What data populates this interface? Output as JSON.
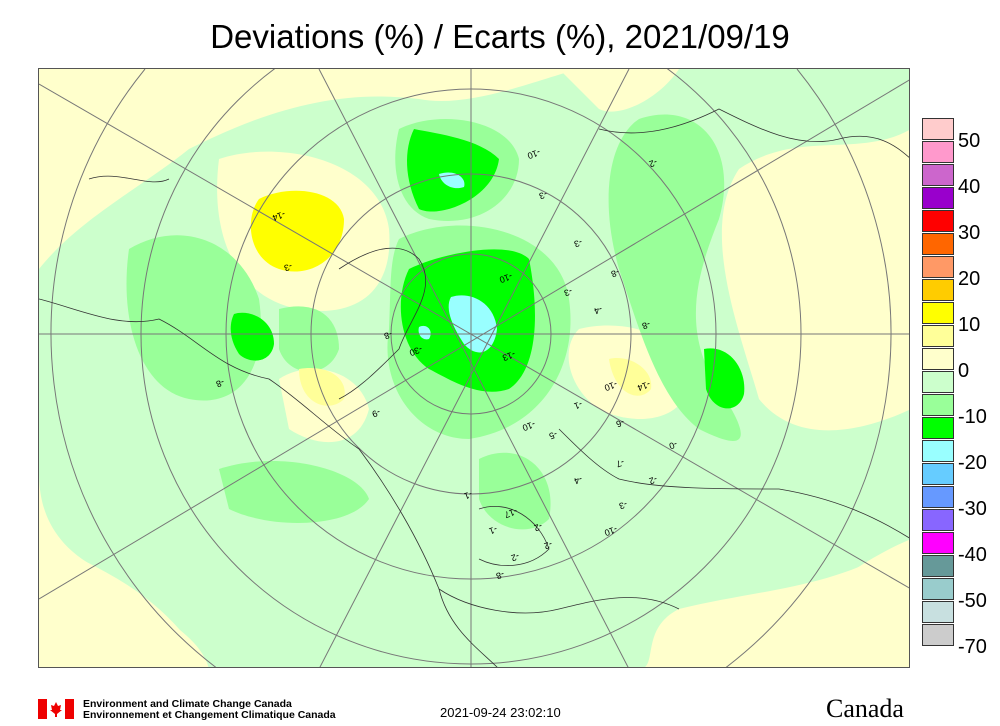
{
  "title": "Deviations (%) / Ecarts (%), 2021/09/19",
  "legend": {
    "colors": [
      "#ffcccc",
      "#ff99cc",
      "#cc66cc",
      "#9900cc",
      "#ff0000",
      "#ff6600",
      "#ff9966",
      "#ffcc00",
      "#ffff00",
      "#ffff99",
      "#ffffcc",
      "#ccffcc",
      "#99ff99",
      "#00ff00",
      "#99ffff",
      "#66ccff",
      "#6699ff",
      "#8866ff",
      "#ff00ff",
      "#669999",
      "#99cccc",
      "#c8e0e0",
      "#cccccc"
    ],
    "labels": [
      "50",
      "40",
      "30",
      "20",
      "10",
      "0",
      "-10",
      "-20",
      "-30",
      "-40",
      "-50",
      "-70"
    ]
  },
  "contour_labels": [
    "-10",
    "-2",
    "-3",
    "-3",
    "-14",
    "-3",
    "-8",
    "-3",
    "-10",
    "-4",
    "-8",
    "-8",
    "-30",
    "-13",
    "-8",
    "-10",
    "-14",
    "-1",
    "-6",
    "-9",
    "-10",
    "-5",
    "-0",
    "-7",
    "-4",
    "-2",
    "-3",
    "-1",
    "-17",
    "-1",
    "-2",
    "-2",
    "-10",
    "-2",
    "-8"
  ],
  "footer": {
    "org_en": "Environment and Climate Change Canada",
    "org_fr": "Environnement et Changement Climatique Canada",
    "timestamp": "2021-09-24 23:02:10",
    "wordmark": "Canada"
  }
}
